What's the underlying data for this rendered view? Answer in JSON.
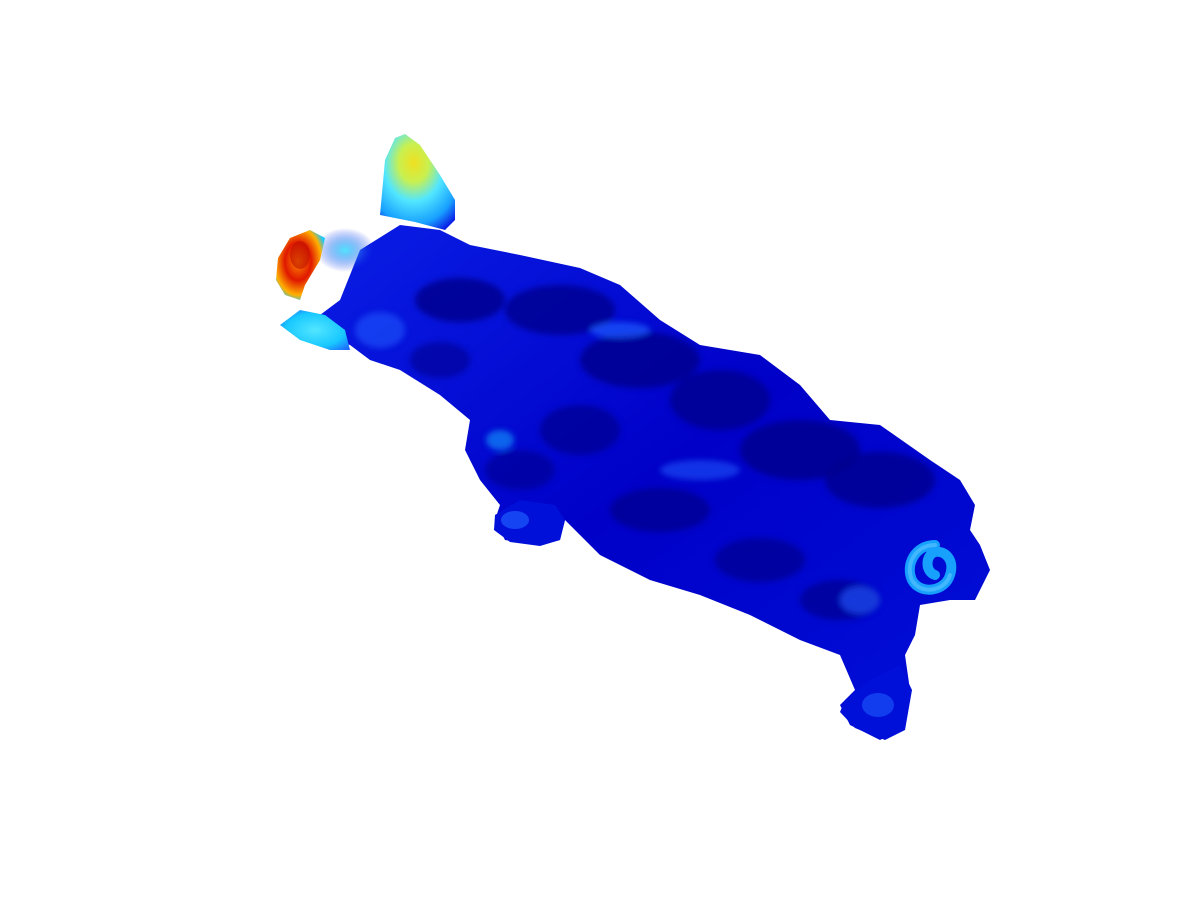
{
  "scene": {
    "subject": "pig-mesh",
    "colormap": "jet",
    "background": "#ffffff",
    "colors": {
      "base_dark": "#00008f",
      "base": "#0000c8",
      "mid_blue": "#0a1fe6",
      "light_blue": "#1e5cff",
      "cyan": "#18c8ff",
      "cyan_light": "#52e6ff",
      "yellow_green": "#c8f050",
      "yellow": "#f0e020",
      "orange": "#ff8a00",
      "red": "#e01800",
      "dark_red": "#a00000"
    }
  }
}
